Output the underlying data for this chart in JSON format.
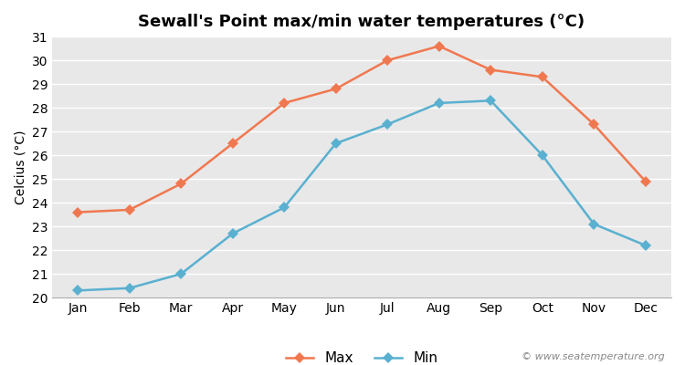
{
  "months": [
    "Jan",
    "Feb",
    "Mar",
    "Apr",
    "May",
    "Jun",
    "Jul",
    "Aug",
    "Sep",
    "Oct",
    "Nov",
    "Dec"
  ],
  "max_temps": [
    23.6,
    23.7,
    24.8,
    26.5,
    28.2,
    28.8,
    30.0,
    30.6,
    29.6,
    29.3,
    27.3,
    24.9
  ],
  "min_temps": [
    20.3,
    20.4,
    21.0,
    22.7,
    23.8,
    26.5,
    27.3,
    28.2,
    28.3,
    26.0,
    23.1,
    22.2
  ],
  "max_color": "#f07850",
  "min_color": "#5ab0d0",
  "title": "Sewall's Point max/min water temperatures (°C)",
  "ylabel": "Celcius (°C)",
  "ylim": [
    20,
    31
  ],
  "yticks": [
    20,
    21,
    22,
    23,
    24,
    25,
    26,
    27,
    28,
    29,
    30,
    31
  ],
  "plot_bg_color": "#e8e8e8",
  "fig_bg_color": "#ffffff",
  "grid_color": "#ffffff",
  "legend_max": "Max",
  "legend_min": "Min",
  "watermark": "© www.seatemperature.org",
  "title_fontsize": 13,
  "label_fontsize": 10,
  "tick_fontsize": 10,
  "watermark_fontsize": 8
}
